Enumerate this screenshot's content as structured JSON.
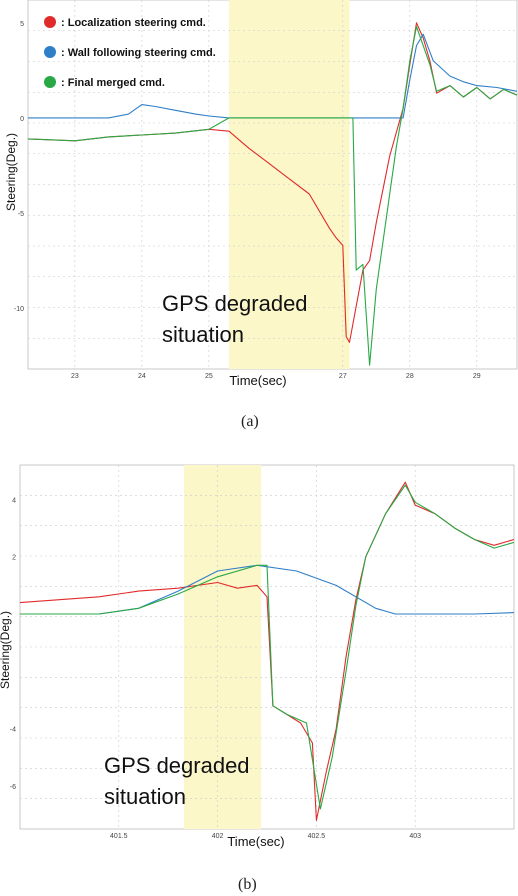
{
  "figure": {
    "caption_a": "(a)",
    "caption_b": "(b)"
  },
  "colors": {
    "localization": "#e02b2b",
    "wall_following": "#2f7fc8",
    "final_merged": "#29a845",
    "highlight": "#fbf7c8",
    "grid": "#c9c9c9"
  },
  "chart_data": [
    {
      "type": "line",
      "panel": "a",
      "ylabel": "Steering(Deg.)",
      "xlabel": "Time(sec)",
      "x_ticks": [
        23,
        24,
        25,
        27,
        28,
        29
      ],
      "y_ticks": [
        5,
        0,
        -5,
        -10
      ],
      "xlim": [
        22.3,
        29.6
      ],
      "ylim": [
        -13.2,
        6.2
      ],
      "grid": true,
      "legend_position": "top-left",
      "legend": [
        {
          "label": ": Localization steering cmd.",
          "color": "#e02b2b"
        },
        {
          "label": ": Wall following steering cmd.",
          "color": "#2f7fc8"
        },
        {
          "label": ": Final merged cmd.",
          "color": "#29a845"
        }
      ],
      "highlight": {
        "x_range": [
          25.3,
          27.1
        ],
        "label_line1": "GPS degraded",
        "label_line2": "situation"
      },
      "series": [
        {
          "name": "Localization steering cmd.",
          "color": "#e02b2b",
          "points": [
            [
              22.3,
              -1.1
            ],
            [
              23.0,
              -1.2
            ],
            [
              23.5,
              -1.0
            ],
            [
              24.0,
              -0.9
            ],
            [
              24.5,
              -0.8
            ],
            [
              25.0,
              -0.6
            ],
            [
              25.3,
              -0.7
            ],
            [
              25.6,
              -1.6
            ],
            [
              25.9,
              -2.4
            ],
            [
              26.2,
              -3.2
            ],
            [
              26.5,
              -4.0
            ],
            [
              26.8,
              -5.8
            ],
            [
              26.9,
              -6.3
            ],
            [
              27.0,
              -6.7
            ],
            [
              27.05,
              -11.5
            ],
            [
              27.1,
              -11.8
            ],
            [
              27.3,
              -8.0
            ],
            [
              27.4,
              -7.5
            ],
            [
              27.5,
              -5.5
            ],
            [
              27.7,
              -2.0
            ],
            [
              27.9,
              0.5
            ],
            [
              28.0,
              2.8
            ],
            [
              28.1,
              5.0
            ],
            [
              28.2,
              4.2
            ],
            [
              28.3,
              3.0
            ],
            [
              28.4,
              1.3
            ],
            [
              28.6,
              1.7
            ],
            [
              28.8,
              1.1
            ],
            [
              29.0,
              1.6
            ],
            [
              29.2,
              1.0
            ],
            [
              29.4,
              1.5
            ],
            [
              29.6,
              1.2
            ]
          ]
        },
        {
          "name": "Wall following steering cmd.",
          "color": "#2f7fc8",
          "points": [
            [
              22.3,
              0.0
            ],
            [
              23.5,
              0.0
            ],
            [
              23.8,
              0.2
            ],
            [
              24.0,
              0.7
            ],
            [
              24.2,
              0.6
            ],
            [
              24.5,
              0.4
            ],
            [
              24.8,
              0.2
            ],
            [
              25.0,
              0.1
            ],
            [
              25.3,
              0.0
            ],
            [
              27.0,
              0.0
            ],
            [
              27.5,
              0.0
            ],
            [
              27.9,
              0.0
            ],
            [
              28.0,
              2.0
            ],
            [
              28.1,
              3.8
            ],
            [
              28.2,
              4.4
            ],
            [
              28.35,
              3.0
            ],
            [
              28.6,
              2.2
            ],
            [
              28.8,
              1.9
            ],
            [
              29.0,
              1.7
            ],
            [
              29.3,
              1.6
            ],
            [
              29.6,
              1.4
            ]
          ]
        },
        {
          "name": "Final merged cmd.",
          "color": "#29a845",
          "points": [
            [
              22.3,
              -1.1
            ],
            [
              23.0,
              -1.2
            ],
            [
              23.5,
              -1.0
            ],
            [
              24.0,
              -0.9
            ],
            [
              24.5,
              -0.8
            ],
            [
              25.0,
              -0.6
            ],
            [
              25.3,
              0.0
            ],
            [
              26.5,
              0.0
            ],
            [
              27.15,
              0.0
            ],
            [
              27.2,
              -8.0
            ],
            [
              27.3,
              -7.7
            ],
            [
              27.4,
              -13.0
            ],
            [
              27.5,
              -9.0
            ],
            [
              27.6,
              -6.5
            ],
            [
              27.7,
              -4.0
            ],
            [
              27.8,
              -1.5
            ],
            [
              27.9,
              0.5
            ],
            [
              28.0,
              3.0
            ],
            [
              28.1,
              4.8
            ],
            [
              28.2,
              3.8
            ],
            [
              28.3,
              2.8
            ],
            [
              28.4,
              1.4
            ],
            [
              28.6,
              1.7
            ],
            [
              28.8,
              1.1
            ],
            [
              29.0,
              1.6
            ],
            [
              29.2,
              1.0
            ],
            [
              29.4,
              1.5
            ],
            [
              29.6,
              1.2
            ]
          ]
        }
      ]
    },
    {
      "type": "line",
      "panel": "b",
      "ylabel": "Steering(Deg.)",
      "xlabel": "Time(sec)",
      "x_ticks": [
        401.5,
        402,
        402.5,
        403
      ],
      "y_ticks": [
        4,
        2,
        -4,
        -6
      ],
      "xlim": [
        401.0,
        403.5
      ],
      "ylim": [
        -7.5,
        5.2
      ],
      "grid": true,
      "highlight": {
        "x_range": [
          401.83,
          402.22
        ],
        "label_line1": "GPS degraded",
        "label_line2": "situation"
      },
      "series": [
        {
          "name": "Localization steering cmd.",
          "color": "#e02b2b",
          "points": [
            [
              401.0,
              0.4
            ],
            [
              401.2,
              0.5
            ],
            [
              401.4,
              0.6
            ],
            [
              401.6,
              0.8
            ],
            [
              401.8,
              0.9
            ],
            [
              402.0,
              1.1
            ],
            [
              402.1,
              0.9
            ],
            [
              402.2,
              1.0
            ],
            [
              402.25,
              0.6
            ],
            [
              402.28,
              -3.2
            ],
            [
              402.35,
              -3.5
            ],
            [
              402.42,
              -3.8
            ],
            [
              402.48,
              -4.5
            ],
            [
              402.5,
              -7.2
            ],
            [
              402.55,
              -5.5
            ],
            [
              402.6,
              -4.0
            ],
            [
              402.65,
              -1.5
            ],
            [
              402.7,
              0.5
            ],
            [
              402.75,
              2.0
            ],
            [
              402.85,
              3.5
            ],
            [
              402.95,
              4.6
            ],
            [
              403.0,
              3.8
            ],
            [
              403.1,
              3.5
            ],
            [
              403.2,
              3.0
            ],
            [
              403.3,
              2.6
            ],
            [
              403.4,
              2.4
            ],
            [
              403.5,
              2.6
            ]
          ]
        },
        {
          "name": "Wall following steering cmd.",
          "color": "#2f7fc8",
          "points": [
            [
              401.0,
              0.0
            ],
            [
              401.4,
              0.0
            ],
            [
              401.6,
              0.2
            ],
            [
              401.8,
              0.8
            ],
            [
              402.0,
              1.5
            ],
            [
              402.2,
              1.7
            ],
            [
              402.4,
              1.5
            ],
            [
              402.6,
              1.0
            ],
            [
              402.8,
              0.2
            ],
            [
              402.9,
              0.0
            ],
            [
              403.3,
              0.0
            ],
            [
              403.5,
              0.05
            ]
          ]
        },
        {
          "name": "Final merged cmd.",
          "color": "#29a845",
          "points": [
            [
              401.0,
              0.0
            ],
            [
              401.4,
              0.0
            ],
            [
              401.6,
              0.2
            ],
            [
              401.8,
              0.7
            ],
            [
              402.0,
              1.3
            ],
            [
              402.2,
              1.7
            ],
            [
              402.25,
              1.7
            ],
            [
              402.28,
              -3.2
            ],
            [
              402.35,
              -3.5
            ],
            [
              402.45,
              -3.8
            ],
            [
              402.52,
              -6.8
            ],
            [
              402.58,
              -5.0
            ],
            [
              402.65,
              -2.0
            ],
            [
              402.7,
              0.3
            ],
            [
              402.75,
              2.0
            ],
            [
              402.85,
              3.5
            ],
            [
              402.95,
              4.5
            ],
            [
              403.0,
              3.9
            ],
            [
              403.1,
              3.5
            ],
            [
              403.2,
              3.0
            ],
            [
              403.3,
              2.6
            ],
            [
              403.4,
              2.3
            ],
            [
              403.5,
              2.5
            ]
          ]
        }
      ]
    }
  ]
}
